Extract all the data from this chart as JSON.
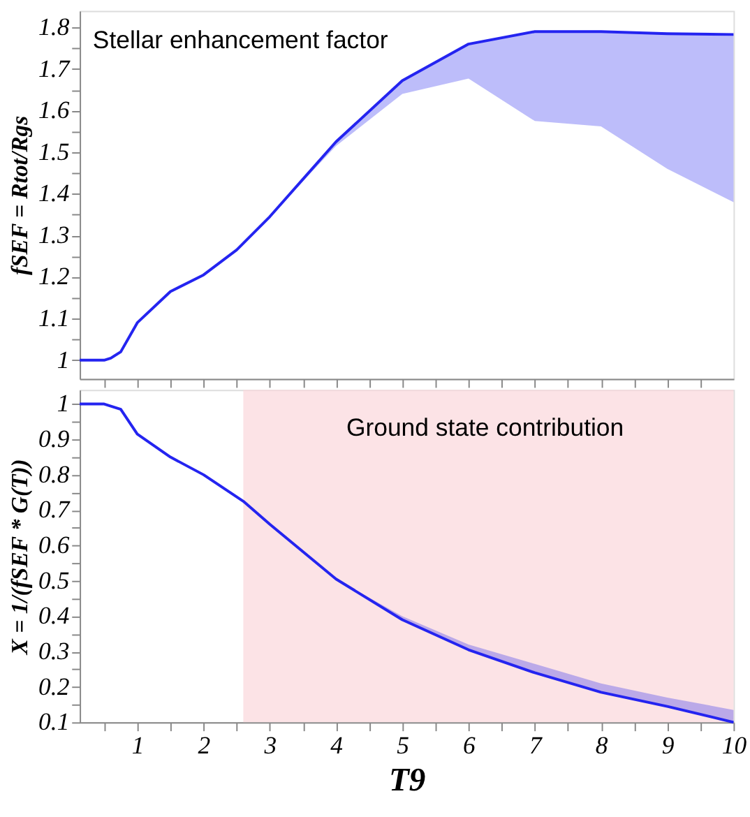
{
  "chart_data": [
    {
      "type": "line",
      "ylabel": "fSEF = Rtot/Rgs",
      "annotations": [
        "Stellar enhancement factor"
      ],
      "x": [
        0.13,
        0.5,
        0.6,
        0.75,
        1,
        1.5,
        2,
        2.5,
        3,
        3.5,
        4,
        5,
        6,
        7,
        8,
        9,
        10
      ],
      "series": [
        {
          "color": "#2424f0",
          "values": [
            1.0,
            1.0,
            1.005,
            1.02,
            1.09,
            1.165,
            1.205,
            1.265,
            1.345,
            1.435,
            1.525,
            1.672,
            1.76,
            1.79,
            1.79,
            1.785,
            1.783
          ],
          "upper": [
            1.0,
            1.0,
            1.005,
            1.02,
            1.09,
            1.165,
            1.205,
            1.265,
            1.345,
            1.435,
            1.525,
            1.672,
            1.76,
            1.79,
            1.79,
            1.785,
            1.783
          ],
          "lower": [
            1.0,
            1.0,
            1.005,
            1.02,
            1.09,
            1.165,
            1.205,
            1.265,
            1.345,
            1.43,
            1.515,
            1.64,
            1.677,
            1.575,
            1.562,
            1.46,
            1.38
          ]
        }
      ],
      "xlim": [
        0.13,
        10
      ],
      "xticks": [
        {
          "value": 0.5,
          "label": null
        },
        {
          "value": 1,
          "label": null
        },
        {
          "value": 1.5,
          "label": null
        },
        {
          "value": 2,
          "label": null
        },
        {
          "value": 2.5,
          "label": null
        },
        {
          "value": 3,
          "label": null
        },
        {
          "value": 3.5,
          "label": null
        },
        {
          "value": 4,
          "label": null
        },
        {
          "value": 4.5,
          "label": null
        },
        {
          "value": 5,
          "label": null
        },
        {
          "value": 5.5,
          "label": null
        },
        {
          "value": 6,
          "label": null
        },
        {
          "value": 6.5,
          "label": null
        },
        {
          "value": 7,
          "label": null
        },
        {
          "value": 7.5,
          "label": null
        },
        {
          "value": 8,
          "label": null
        },
        {
          "value": 8.5,
          "label": null
        },
        {
          "value": 9,
          "label": null
        },
        {
          "value": 9.5,
          "label": null
        }
      ],
      "ylim": [
        0.955,
        1.84
      ],
      "yticks": [
        1,
        {
          "value": 1.05,
          "label": null
        },
        1.1,
        {
          "value": 1.15,
          "label": null
        },
        1.2,
        {
          "value": 1.25,
          "label": null
        },
        1.3,
        {
          "value": 1.35,
          "label": null
        },
        1.4,
        {
          "value": 1.45,
          "label": null
        },
        1.5,
        {
          "value": 1.55,
          "label": null
        },
        1.6,
        {
          "value": 1.65,
          "label": null
        },
        1.7,
        {
          "value": 1.75,
          "label": null
        },
        1.8
      ],
      "tick_labels": "y",
      "marker": "none",
      "line_style": "solid"
    },
    {
      "type": "line",
      "xlabel": "T9",
      "ylabel": "X = 1/(fSEF * G(T))",
      "annotations": [
        "Ground state contribution"
      ],
      "x": [
        0.13,
        0.5,
        0.75,
        1,
        1.5,
        2,
        2.6,
        3,
        4,
        5,
        6,
        7,
        8,
        9,
        10
      ],
      "series": [
        {
          "color": "#2424f0",
          "values": [
            1.0,
            1.0,
            0.985,
            0.915,
            0.85,
            0.8,
            0.725,
            0.66,
            0.505,
            0.39,
            0.305,
            0.24,
            0.185,
            0.145,
            0.1
          ],
          "lower": [
            1.0,
            1.0,
            0.985,
            0.915,
            0.85,
            0.8,
            0.725,
            0.66,
            0.505,
            0.39,
            0.305,
            0.24,
            0.185,
            0.145,
            0.1
          ],
          "upper": [
            1.0,
            1.0,
            0.985,
            0.915,
            0.85,
            0.8,
            0.725,
            0.66,
            0.505,
            0.4,
            0.32,
            0.265,
            0.21,
            0.17,
            0.135
          ]
        }
      ],
      "bands": [
        {
          "axis": "x",
          "from": 2.6,
          "to": 10,
          "color": "#fbd7dc"
        }
      ],
      "xlim": [
        0.13,
        10
      ],
      "xticks": [
        {
          "value": 0.5,
          "label": null
        },
        1,
        {
          "value": 1.5,
          "label": null
        },
        2,
        {
          "value": 2.5,
          "label": null
        },
        3,
        {
          "value": 3.5,
          "label": null
        },
        4,
        {
          "value": 4.5,
          "label": null
        },
        5,
        {
          "value": 5.5,
          "label": null
        },
        6,
        {
          "value": 6.5,
          "label": null
        },
        7,
        {
          "value": 7.5,
          "label": null
        },
        8,
        {
          "value": 8.5,
          "label": null
        },
        9,
        {
          "value": 9.5,
          "label": null
        },
        10
      ],
      "ylim": [
        0.1,
        1.04
      ],
      "yticks": [
        0.1,
        {
          "value": 0.15,
          "label": null
        },
        0.2,
        {
          "value": 0.25,
          "label": null
        },
        0.3,
        {
          "value": 0.35,
          "label": null
        },
        0.4,
        {
          "value": 0.45,
          "label": null
        },
        0.5,
        {
          "value": 0.55,
          "label": null
        },
        0.6,
        {
          "value": 0.65,
          "label": null
        },
        0.7,
        {
          "value": 0.75,
          "label": null
        },
        0.8,
        {
          "value": 0.85,
          "label": null
        },
        0.9,
        {
          "value": 0.95,
          "label": null
        },
        1
      ],
      "marker": "none",
      "line_style": "solid"
    }
  ]
}
